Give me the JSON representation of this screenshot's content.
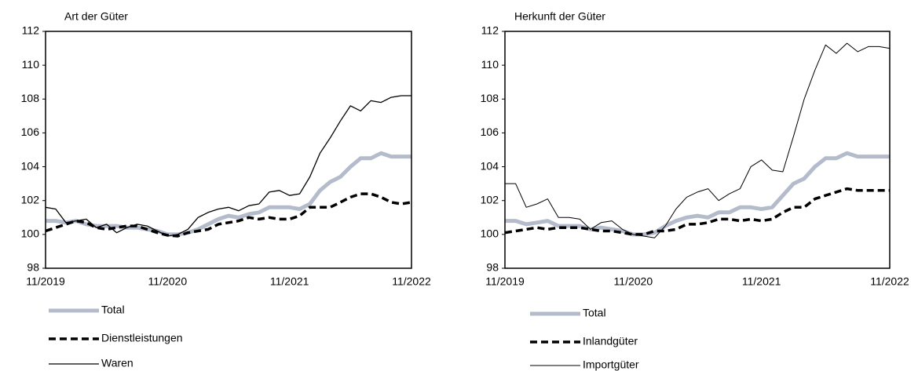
{
  "chart_data": [
    {
      "type": "line",
      "title": "Art der Güter",
      "categories": [
        "11/2019",
        null,
        null,
        null,
        null,
        null,
        null,
        null,
        null,
        null,
        null,
        null,
        "11/2020",
        null,
        null,
        null,
        null,
        null,
        null,
        null,
        null,
        null,
        null,
        null,
        "11/2021",
        null,
        null,
        null,
        null,
        null,
        null,
        null,
        null,
        null,
        null,
        null,
        "11/2022"
      ],
      "ylim": [
        98,
        112
      ],
      "yticks": [
        98,
        100,
        102,
        104,
        106,
        108,
        110,
        112
      ],
      "series": [
        {
          "name": "Total",
          "color": "#b4bccc",
          "width": 5,
          "dash": false,
          "values": [
            100.8,
            100.8,
            100.7,
            100.8,
            100.6,
            100.5,
            100.5,
            100.5,
            100.4,
            100.4,
            100.3,
            100.2,
            100.0,
            100.0,
            100.1,
            100.3,
            100.6,
            100.9,
            101.1,
            101.0,
            101.2,
            101.3,
            101.6,
            101.6,
            101.6,
            101.5,
            101.8,
            102.6,
            103.1,
            103.4,
            104.0,
            104.5,
            104.5,
            104.8,
            104.6,
            104.6,
            104.6
          ]
        },
        {
          "name": "Dienstleistungen",
          "color": "#000000",
          "width": 3.5,
          "dash": true,
          "values": [
            100.2,
            100.4,
            100.6,
            100.8,
            100.7,
            100.4,
            100.3,
            100.4,
            100.5,
            100.5,
            100.3,
            100.1,
            99.95,
            99.9,
            100.1,
            100.2,
            100.3,
            100.6,
            100.7,
            100.8,
            101.0,
            100.9,
            101.0,
            100.9,
            100.9,
            101.1,
            101.6,
            101.6,
            101.6,
            101.9,
            102.2,
            102.4,
            102.4,
            102.2,
            101.9,
            101.8,
            101.9
          ]
        },
        {
          "name": "Waren",
          "color": "#000000",
          "width": 1.3,
          "dash": false,
          "values": [
            101.6,
            101.5,
            100.7,
            100.8,
            100.9,
            100.4,
            100.6,
            100.1,
            100.4,
            100.6,
            100.5,
            100.2,
            99.9,
            100.0,
            100.3,
            101.0,
            101.3,
            101.5,
            101.6,
            101.4,
            101.7,
            101.8,
            102.5,
            102.6,
            102.3,
            102.4,
            103.4,
            104.8,
            105.7,
            106.7,
            107.6,
            107.3,
            107.9,
            107.8,
            108.1,
            108.2,
            108.2
          ]
        }
      ]
    },
    {
      "type": "line",
      "title": "Herkunft der Güter",
      "categories": [
        "11/2019",
        null,
        null,
        null,
        null,
        null,
        null,
        null,
        null,
        null,
        null,
        null,
        "11/2020",
        null,
        null,
        null,
        null,
        null,
        null,
        null,
        null,
        null,
        null,
        null,
        "11/2021",
        null,
        null,
        null,
        null,
        null,
        null,
        null,
        null,
        null,
        null,
        null,
        "11/2022"
      ],
      "ylim": [
        98,
        112
      ],
      "yticks": [
        98,
        100,
        102,
        104,
        106,
        108,
        110,
        112
      ],
      "series": [
        {
          "name": "Total",
          "color": "#b4bccc",
          "width": 5,
          "dash": false,
          "values": [
            100.8,
            100.8,
            100.6,
            100.7,
            100.8,
            100.5,
            100.5,
            100.5,
            100.3,
            100.4,
            100.3,
            100.2,
            100.0,
            100.0,
            100.1,
            100.5,
            100.8,
            101.0,
            101.1,
            101.0,
            101.3,
            101.3,
            101.6,
            101.6,
            101.5,
            101.6,
            102.3,
            103.0,
            103.3,
            104.0,
            104.5,
            104.5,
            104.8,
            104.6,
            104.6,
            104.6,
            104.6
          ]
        },
        {
          "name": "Inlandgüter",
          "color": "#000000",
          "width": 3.5,
          "dash": true,
          "values": [
            100.1,
            100.2,
            100.3,
            100.4,
            100.3,
            100.4,
            100.4,
            100.4,
            100.3,
            100.2,
            100.2,
            100.1,
            100.0,
            100.0,
            100.2,
            100.2,
            100.3,
            100.6,
            100.6,
            100.7,
            100.9,
            100.9,
            100.8,
            100.9,
            100.8,
            100.9,
            101.3,
            101.6,
            101.6,
            102.1,
            102.3,
            102.5,
            102.7,
            102.6,
            102.6,
            102.6,
            102.6
          ]
        },
        {
          "name": "Importgüter",
          "color": "#000000",
          "width": 1,
          "dash": false,
          "values": [
            103.0,
            103.0,
            101.6,
            101.8,
            102.1,
            101.0,
            101.0,
            100.9,
            100.3,
            100.7,
            100.8,
            100.3,
            100.0,
            99.9,
            99.8,
            100.5,
            101.5,
            102.2,
            102.5,
            102.7,
            102.0,
            102.4,
            102.7,
            104.0,
            104.4,
            103.8,
            103.7,
            105.8,
            108.0,
            109.7,
            111.2,
            110.7,
            111.3,
            110.8,
            111.1,
            111.1,
            111.0
          ]
        }
      ]
    }
  ]
}
